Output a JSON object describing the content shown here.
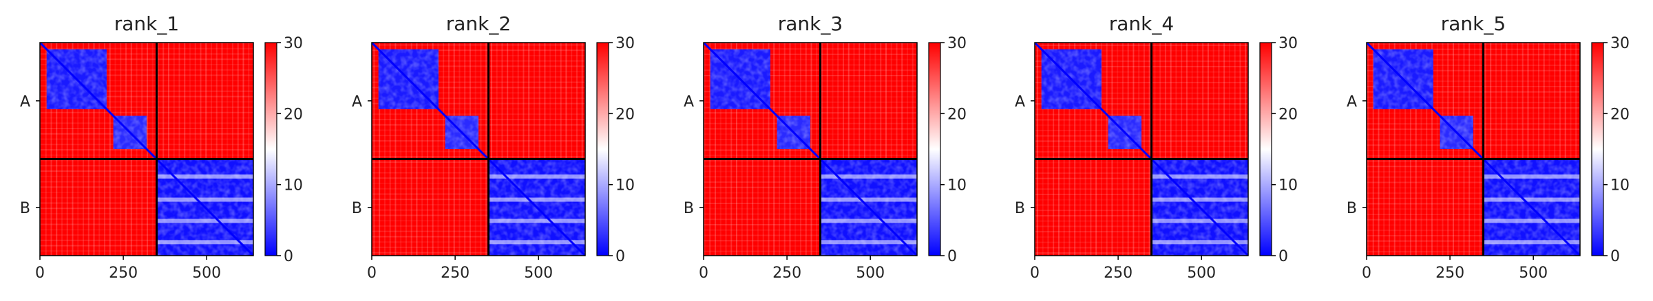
{
  "figure": {
    "background": "#ffffff"
  },
  "chart_data": [
    {
      "type": "heatmap",
      "title": "rank_1",
      "chains": [
        "A",
        "B"
      ],
      "chain_boundary": 350,
      "sequence_length": 640,
      "xticks": [
        0,
        250,
        500
      ],
      "xlim": [
        0,
        640
      ],
      "colorbar": {
        "min": 0,
        "max": 30,
        "ticks": [
          0,
          10,
          20,
          30
        ],
        "colormap": [
          "#0000ff",
          "#ffffff",
          "#ff0000"
        ]
      },
      "description_values": {
        "intra_chain_A_domain1": [
          20,
          200
        ],
        "intra_chain_A_domain2": [
          220,
          320
        ],
        "intra_chain_B": [
          350,
          640
        ]
      }
    },
    {
      "type": "heatmap",
      "title": "rank_2",
      "chains": [
        "A",
        "B"
      ],
      "chain_boundary": 350,
      "sequence_length": 640,
      "xticks": [
        0,
        250,
        500
      ],
      "xlim": [
        0,
        640
      ],
      "colorbar": {
        "min": 0,
        "max": 30,
        "ticks": [
          0,
          10,
          20,
          30
        ],
        "colormap": [
          "#0000ff",
          "#ffffff",
          "#ff0000"
        ]
      },
      "description_values": {
        "intra_chain_A_domain1": [
          20,
          200
        ],
        "intra_chain_A_domain2": [
          220,
          320
        ],
        "intra_chain_B": [
          350,
          640
        ]
      }
    },
    {
      "type": "heatmap",
      "title": "rank_3",
      "chains": [
        "A",
        "B"
      ],
      "chain_boundary": 350,
      "sequence_length": 640,
      "xticks": [
        0,
        250,
        500
      ],
      "xlim": [
        0,
        640
      ],
      "colorbar": {
        "min": 0,
        "max": 30,
        "ticks": [
          0,
          10,
          20,
          30
        ],
        "colormap": [
          "#0000ff",
          "#ffffff",
          "#ff0000"
        ]
      },
      "description_values": {
        "intra_chain_A_domain1": [
          20,
          200
        ],
        "intra_chain_A_domain2": [
          220,
          320
        ],
        "intra_chain_B": [
          350,
          640
        ]
      }
    },
    {
      "type": "heatmap",
      "title": "rank_4",
      "chains": [
        "A",
        "B"
      ],
      "chain_boundary": 350,
      "sequence_length": 640,
      "xticks": [
        0,
        250,
        500
      ],
      "xlim": [
        0,
        640
      ],
      "colorbar": {
        "min": 0,
        "max": 30,
        "ticks": [
          0,
          10,
          20,
          30
        ],
        "colormap": [
          "#0000ff",
          "#ffffff",
          "#ff0000"
        ]
      },
      "description_values": {
        "intra_chain_A_domain1": [
          20,
          200
        ],
        "intra_chain_A_domain2": [
          220,
          320
        ],
        "intra_chain_B": [
          350,
          640
        ]
      }
    },
    {
      "type": "heatmap",
      "title": "rank_5",
      "chains": [
        "A",
        "B"
      ],
      "chain_boundary": 350,
      "sequence_length": 640,
      "xticks": [
        0,
        250,
        500
      ],
      "xlim": [
        0,
        640
      ],
      "colorbar": {
        "min": 0,
        "max": 30,
        "ticks": [
          0,
          10,
          20,
          30
        ],
        "colormap": [
          "#0000ff",
          "#ffffff",
          "#ff0000"
        ]
      },
      "description_values": {
        "intra_chain_A_domain1": [
          20,
          200
        ],
        "intra_chain_A_domain2": [
          220,
          320
        ],
        "intra_chain_B": [
          350,
          640
        ]
      }
    }
  ]
}
